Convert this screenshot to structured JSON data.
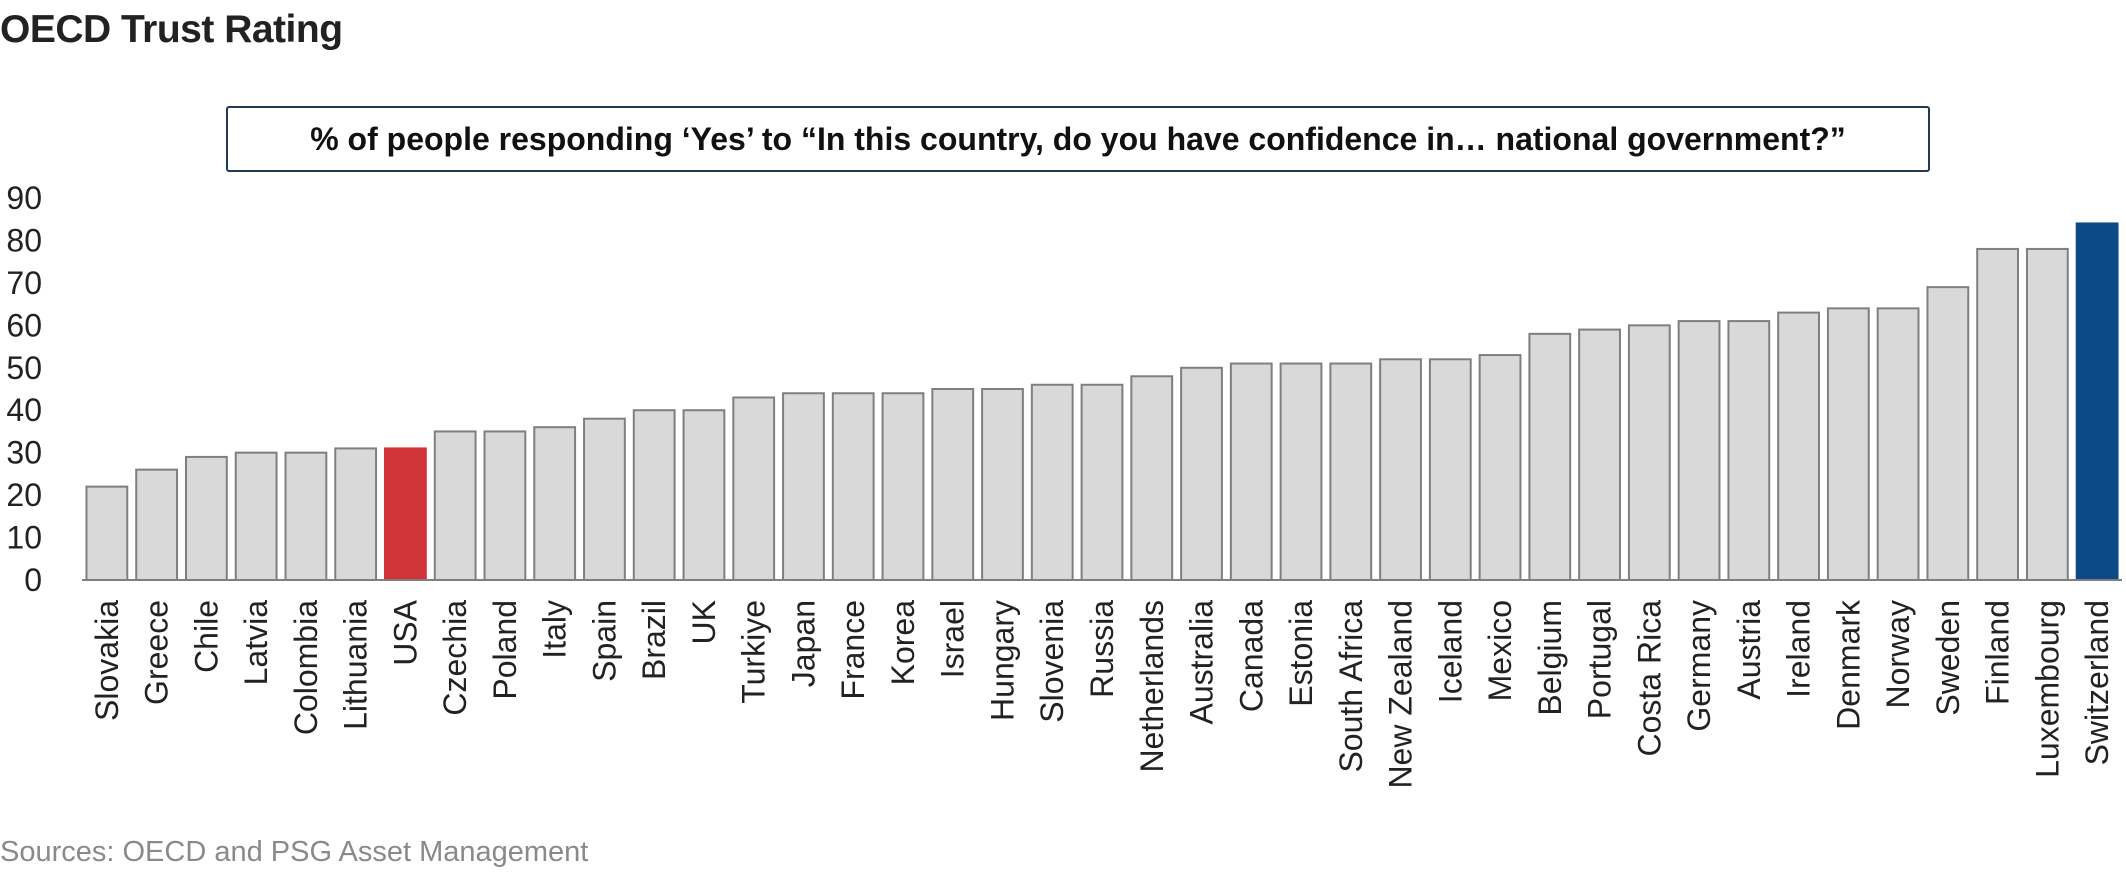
{
  "title": "OECD Trust Rating",
  "subtitle": "% of people responding ‘Yes’ to “In this country, do you have confidence in… national government?”",
  "source": "Sources: OECD and PSG Asset Management",
  "colors": {
    "default_bar": "#d9d9d9",
    "bar_border": "#7f7f7f",
    "usa_highlight": "#d13438",
    "switzerland_highlight": "#0b4a85"
  },
  "chart_data": {
    "type": "bar",
    "categories": [
      "Slovakia",
      "Greece",
      "Chile",
      "Latvia",
      "Colombia",
      "Lithuania",
      "USA",
      "Czechia",
      "Poland",
      "Italy",
      "Spain",
      "Brazil",
      "UK",
      "Turkiye",
      "Japan",
      "France",
      "Korea",
      "Israel",
      "Hungary",
      "Slovenia",
      "Russia",
      "Netherlands",
      "Australia",
      "Canada",
      "Estonia",
      "South Africa",
      "New Zealand",
      "Iceland",
      "Mexico",
      "Belgium",
      "Portugal",
      "Costa Rica",
      "Germany",
      "Austria",
      "Ireland",
      "Denmark",
      "Norway",
      "Sweden",
      "Finland",
      "Luxembourg",
      "Switzerland"
    ],
    "values": [
      22,
      26,
      29,
      30,
      30,
      31,
      31,
      35,
      35,
      36,
      38,
      40,
      40,
      43,
      44,
      44,
      44,
      45,
      45,
      46,
      46,
      48,
      50,
      51,
      51,
      51,
      52,
      52,
      53,
      58,
      59,
      60,
      61,
      61,
      63,
      64,
      64,
      69,
      78,
      78,
      84
    ],
    "highlights": {
      "USA": "usa_highlight",
      "Switzerland": "switzerland_highlight"
    },
    "yticks": [
      0,
      10,
      20,
      30,
      40,
      50,
      60,
      70,
      80,
      90
    ],
    "ylim": [
      0,
      90
    ],
    "xlabel": "",
    "ylabel": "",
    "grid": false,
    "legend": "none"
  }
}
